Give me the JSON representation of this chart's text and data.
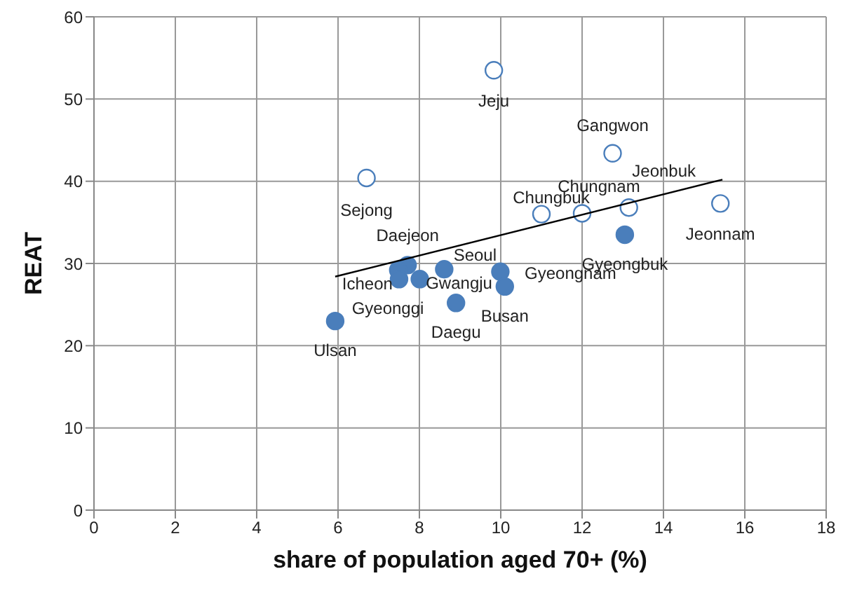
{
  "chart_data": {
    "type": "scatter",
    "xlabel": "share of population aged 70+ (%)",
    "ylabel": "REAT",
    "xlim": [
      0,
      18
    ],
    "xticks": [
      0,
      2,
      4,
      6,
      8,
      10,
      12,
      14,
      16,
      18
    ],
    "ylim": [
      0,
      60
    ],
    "yticks": [
      0,
      10,
      20,
      30,
      40,
      50,
      60
    ],
    "grid": true,
    "legend": false,
    "marker": "circle",
    "series": [
      {
        "color": "#4a7ebb",
        "x": [
          9.83,
          12.75,
          6.7,
          11.0,
          12.0,
          13.15,
          15.4
        ],
        "values": [
          53.5,
          43.4,
          40.4,
          36.0,
          36.1,
          36.8,
          37.3
        ],
        "value_labels": [
          "Jeju",
          "Gangwon",
          "Sejong",
          "Chungbuk",
          "Chungnam",
          "Jeonbuk",
          "Jeonnam"
        ]
      },
      {
        "color": "#4a7ebb",
        "x": [
          13.05,
          7.71,
          7.48,
          7.5,
          8.01,
          8.61,
          9.99,
          10.1,
          8.9,
          5.93
        ],
        "values": [
          33.5,
          29.8,
          29.2,
          28.1,
          28.1,
          29.3,
          29.0,
          27.2,
          25.2,
          23.0
        ],
        "value_labels": [
          "Gyeongbuk",
          "Daejeon",
          "Icheon",
          "Gyeonggi",
          "Gwangju",
          "Seoul",
          "Gyeongnam",
          "Busan",
          "Daegu",
          "Ulsan"
        ]
      },
      {
        "type": "line",
        "color": "#000000",
        "marker": "none",
        "x": [
          5.93,
          15.45
        ],
        "values": [
          28.4,
          40.2
        ]
      }
    ]
  }
}
